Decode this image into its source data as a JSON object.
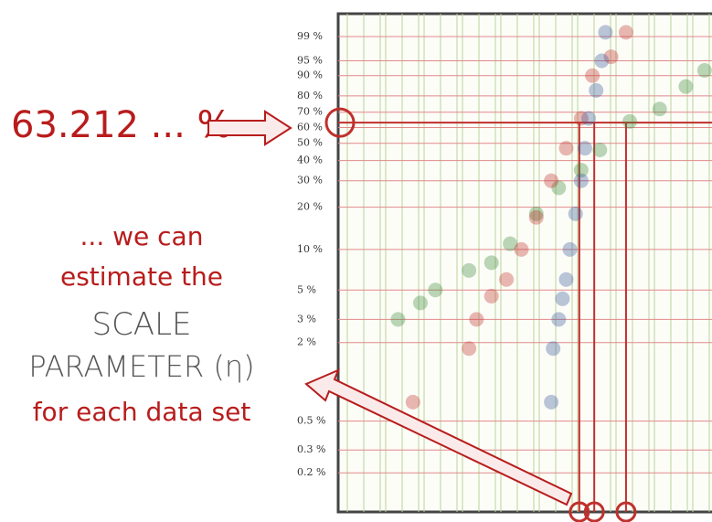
{
  "chart_data": {
    "type": "scatter",
    "yscale": "weibull",
    "ylim": [
      0.1,
      99.9
    ],
    "xlim": [
      0,
      100
    ],
    "grid": true,
    "yticks": [
      {
        "value": 99,
        "label": "99 %"
      },
      {
        "value": 95,
        "label": "95 %"
      },
      {
        "value": 90,
        "label": "90 %"
      },
      {
        "value": 80,
        "label": "80 %"
      },
      {
        "value": 70,
        "label": "70 %"
      },
      {
        "value": 60,
        "label": "60 %"
      },
      {
        "value": 50,
        "label": "50 %"
      },
      {
        "value": 40,
        "label": "40 %"
      },
      {
        "value": 30,
        "label": "30 %"
      },
      {
        "value": 20,
        "label": "20 %"
      },
      {
        "value": 10,
        "label": "10 %"
      },
      {
        "value": 5,
        "label": "5 %"
      },
      {
        "value": 3,
        "label": "3 %"
      },
      {
        "value": 2,
        "label": "2 %"
      },
      {
        "value": 0.5,
        "label": "0.5 %"
      },
      {
        "value": 0.3,
        "label": "0.3 %"
      },
      {
        "value": 0.2,
        "label": "0.2 %"
      }
    ],
    "hline": 63.212,
    "reference_x": [
      64.5,
      68.5,
      77
    ],
    "annotations": [
      "63.212 ... %",
      "... we can",
      "estimate the",
      "SCALE",
      "PARAMETER (η)",
      "for each data set"
    ],
    "series": [
      {
        "color": "#3a8a3a",
        "x": [
          16,
          22,
          26,
          35,
          41,
          46,
          53,
          59,
          65,
          70,
          78,
          86,
          93,
          98
        ],
        "values": [
          3,
          4,
          5,
          7,
          8,
          11,
          18,
          27,
          35,
          46,
          64,
          72,
          85,
          92
        ]
      },
      {
        "color": "#c0302c",
        "x": [
          20,
          35,
          37,
          41,
          45,
          49,
          53,
          57,
          61,
          65,
          68,
          73,
          77
        ],
        "values": [
          0.7,
          1.8,
          3,
          4.5,
          6,
          10,
          17,
          30,
          47,
          66,
          90,
          96,
          99.3
        ]
      },
      {
        "color": "#3a5a9a",
        "x": [
          57,
          57.5,
          59,
          60,
          61,
          62,
          63.5,
          65,
          66,
          67,
          69,
          70.5,
          71.5
        ],
        "values": [
          0.7,
          1.8,
          3,
          4.3,
          6,
          10,
          18,
          30,
          47,
          66,
          83,
          95,
          99.3
        ]
      }
    ]
  }
}
